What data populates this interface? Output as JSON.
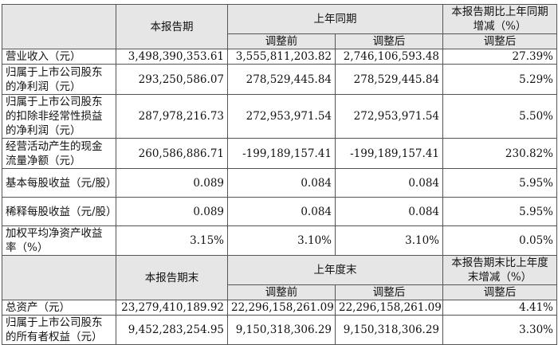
{
  "table1": {
    "header": {
      "period": "本报告期",
      "prior": "上年同期",
      "change": "本报告期比上年同期增减（%）",
      "sub": [
        "调整前",
        "调整后",
        "调整后"
      ]
    },
    "rows": [
      [
        "营业收入（元）",
        "3,498,390,353.61",
        "3,555,811,203.82",
        "2,746,106,593.48",
        "27.39%"
      ],
      [
        "归属于上市公司股东的净利润（元）",
        "293,250,586.07",
        "278,529,445.84",
        "278,529,445.84",
        "5.29%"
      ],
      [
        "归属于上市公司股东的扣除非经常性损益的净利润（元）",
        "287,978,216.73",
        "272,953,971.54",
        "272,953,971.54",
        "5.50%"
      ],
      [
        "经营活动产生的现金流量净额（元）",
        "260,586,886.71",
        "-199,189,157.41",
        "-199,189,157.41",
        "230.82%"
      ],
      [
        "基本每股收益（元/股）",
        "0.089",
        "0.084",
        "0.084",
        "5.95%"
      ],
      [
        "稀释每股收益（元/股）",
        "0.089",
        "0.084",
        "0.084",
        "5.95%"
      ],
      [
        "加权平均净资产收益率（%）",
        "3.15%",
        "3.10%",
        "3.10%",
        "0.05%"
      ]
    ]
  },
  "table2": {
    "header": {
      "period": "本报告期末",
      "prior": "上年度末",
      "change": "本报告期末比上年度末增减（%）",
      "sub": [
        "调整前",
        "调整后",
        "调整后"
      ]
    },
    "rows": [
      [
        "总资产（元）",
        "23,279,410,189.92",
        "22,296,158,261.09",
        "22,296,158,261.09",
        "4.41%"
      ],
      [
        "归属于上市公司股东的所有者权益（元）",
        "9,452,283,254.95",
        "9,150,318,306.29",
        "9,150,318,306.29",
        "3.30%"
      ]
    ]
  }
}
